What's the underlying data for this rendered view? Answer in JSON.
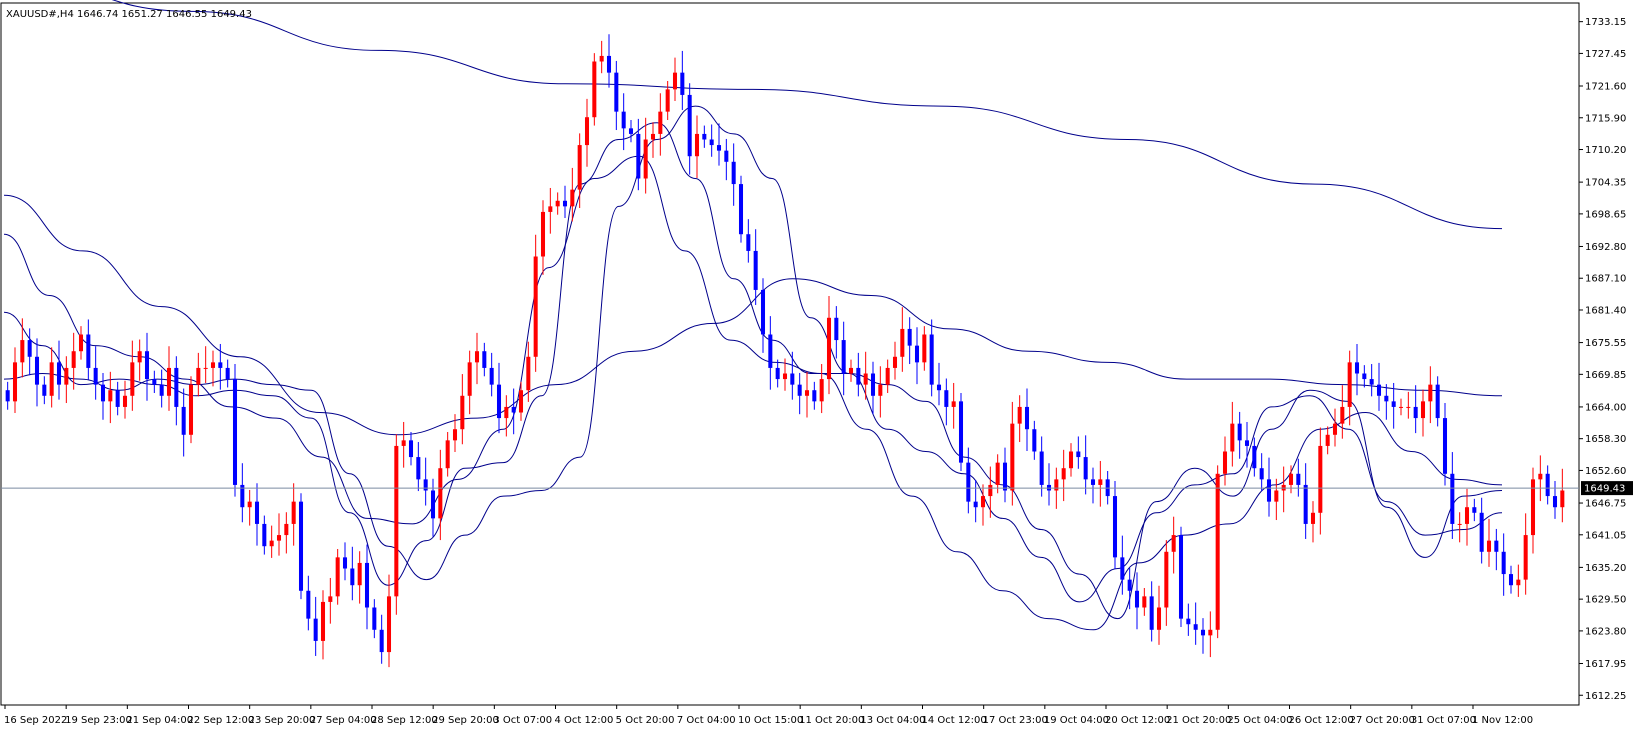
{
  "header": {
    "symbol_line": "XAUUSD#,H4  1646.74 1651.27 1646.55 1649.43"
  },
  "colors": {
    "background": "#ffffff",
    "bull": "#ff0000",
    "bear": "#0000ff",
    "ma": "#00008b",
    "current_price_line": "#7a8aa0",
    "price_tag": "#000000",
    "frame": "#000000"
  },
  "chart_data": {
    "type": "candlestick",
    "symbol": "XAUUSD#",
    "timeframe": "H4",
    "current_price": 1649.43,
    "current_price_label": "1649.43",
    "ylim": [
      1610.5,
      1736.5
    ],
    "y_ticks": [
      "1733.15",
      "1727.45",
      "1721.60",
      "1715.90",
      "1710.20",
      "1704.35",
      "1698.65",
      "1692.80",
      "1687.10",
      "1681.40",
      "1675.55",
      "1669.85",
      "1664.00",
      "1658.30",
      "1652.60",
      "1646.75",
      "1641.05",
      "1635.20",
      "1629.50",
      "1623.80",
      "1617.95",
      "1612.25"
    ],
    "x_labels": [
      "16 Sep 2022",
      "19 Sep 23:00",
      "21 Sep 04:00",
      "22 Sep 12:00",
      "23 Sep 20:00",
      "27 Sep 04:00",
      "28 Sep 12:00",
      "29 Sep 20:00",
      "3 Oct 07:00",
      "4 Oct 12:00",
      "5 Oct 20:00",
      "7 Oct 04:00",
      "10 Oct 15:00",
      "11 Oct 20:00",
      "13 Oct 04:00",
      "14 Oct 12:00",
      "17 Oct 23:00",
      "19 Oct 04:00",
      "20 Oct 12:00",
      "21 Oct 20:00",
      "25 Oct 04:00",
      "26 Oct 12:00",
      "27 Oct 20:00",
      "31 Oct 07:00",
      "1 Nov 12:00"
    ],
    "candle_closes": [
      1665,
      1672,
      1676,
      1673,
      1668,
      1666,
      1672,
      1668,
      1671,
      1674,
      1677,
      1671,
      1668,
      1665,
      1667,
      1664,
      1666,
      1672,
      1674,
      1669,
      1668,
      1666,
      1671,
      1664,
      1659,
      1668,
      1671,
      1671,
      1672,
      1671,
      1669,
      1650,
      1646,
      1647,
      1643,
      1639,
      1640,
      1641,
      1643,
      1647,
      1631,
      1626,
      1622,
      1629,
      1630,
      1637,
      1635,
      1632,
      1636,
      1628,
      1624,
      1620,
      1630,
      1657,
      1658,
      1655,
      1651,
      1649,
      1644,
      1653,
      1658,
      1660,
      1666,
      1672,
      1674,
      1671,
      1668,
      1662,
      1664,
      1663,
      1667,
      1673,
      1691,
      1699,
      1700,
      1701,
      1700,
      1703,
      1711,
      1716,
      1726,
      1727,
      1724,
      1717,
      1714,
      1713,
      1705,
      1712,
      1713,
      1717,
      1721,
      1724,
      1720,
      1709,
      1713,
      1712,
      1711,
      1710,
      1708,
      1704,
      1695,
      1692,
      1685,
      1677,
      1671,
      1669,
      1670,
      1668,
      1666,
      1667,
      1665,
      1669,
      1680,
      1676,
      1670,
      1671,
      1668,
      1670,
      1666,
      1668,
      1671,
      1673,
      1678,
      1675,
      1672,
      1677,
      1668,
      1667,
      1664,
      1665,
      1654,
      1647,
      1646,
      1648,
      1650,
      1654,
      1649,
      1661,
      1664,
      1660,
      1656,
      1650,
      1649,
      1651,
      1653,
      1656,
      1655,
      1651,
      1650,
      1651,
      1648,
      1637,
      1633,
      1631,
      1628,
      1630,
      1624,
      1628,
      1638,
      1641,
      1626,
      1625,
      1624,
      1623,
      1624,
      1652,
      1656,
      1661,
      1658,
      1657,
      1653,
      1651,
      1647,
      1649,
      1650,
      1652,
      1650,
      1643,
      1645,
      1657,
      1659,
      1661,
      1664,
      1672,
      1670,
      1669,
      1668,
      1666,
      1665,
      1664,
      1664,
      1664,
      1662,
      1665,
      1668,
      1662,
      1652,
      1643,
      1643,
      1646,
      1645,
      1638,
      1640,
      1638,
      1634,
      1632,
      1633,
      1641,
      1651,
      1652,
      1648,
      1646,
      1649
    ],
    "moving_averages": [
      {
        "period": "short",
        "values": [
          1669,
          1670,
          1669,
          1667,
          1669,
          1668,
          1669,
          1668,
          1667,
          1652,
          1639,
          1633,
          1641,
          1648,
          1649,
          1655,
          1700,
          1712,
          1718,
          1713,
          1705,
          1680,
          1670,
          1668,
          1665,
          1655,
          1650,
          1642,
          1634,
          1626,
          1647,
          1653,
          1648,
          1660,
          1667,
          1665,
          1646,
          1637,
          1648,
          1649
        ]
      },
      {
        "period": "medium",
        "values": [
          1681,
          1675,
          1668,
          1669,
          1668,
          1666,
          1667,
          1666,
          1662,
          1645,
          1632,
          1640,
          1653,
          1654,
          1666,
          1704,
          1712,
          1715,
          1705,
          1687,
          1676,
          1670,
          1670,
          1660,
          1656,
          1652,
          1644,
          1637,
          1629,
          1635,
          1645,
          1650,
          1652,
          1664,
          1666,
          1660,
          1647,
          1641,
          1642,
          1645
        ]
      },
      {
        "period": "long",
        "values": [
          1695,
          1684,
          1675,
          1673,
          1669,
          1664,
          1662,
          1655,
          1644,
          1643,
          1651,
          1660,
          1689,
          1705,
          1709,
          1692,
          1676,
          1672,
          1670,
          1660,
          1648,
          1638,
          1631,
          1626,
          1624,
          1636,
          1641,
          1643,
          1650,
          1660,
          1663,
          1656,
          1651,
          1650
        ]
      },
      {
        "period": "very-long",
        "values": [
          1702,
          1692,
          1682,
          1673,
          1663,
          1659,
          1662,
          1668,
          1674,
          1679,
          1687,
          1684,
          1678,
          1674,
          1672,
          1669,
          1669,
          1668,
          1667,
          1666
        ]
      },
      {
        "period": "longest",
        "values": [
          1741,
          1735,
          1728,
          1722,
          1721,
          1718,
          1712,
          1704,
          1696
        ]
      }
    ]
  }
}
